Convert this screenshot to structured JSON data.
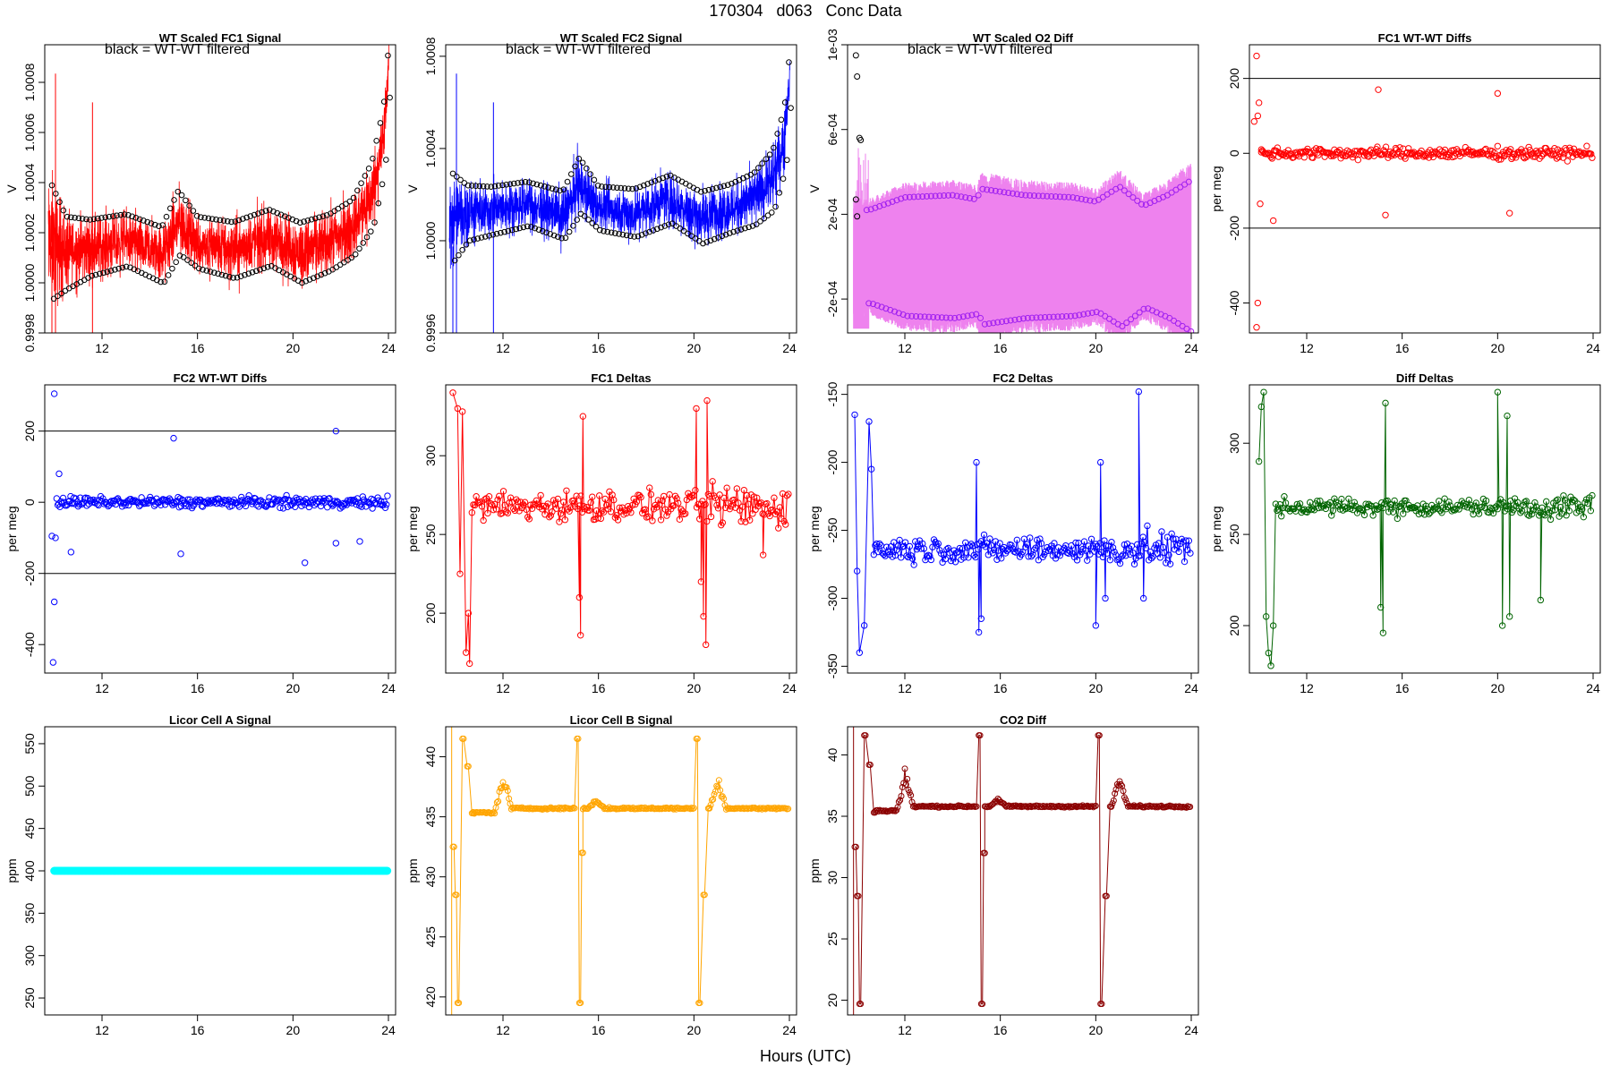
{
  "page": {
    "title": "170304   d063   Conc Data",
    "xlabel": "Hours (UTC)"
  },
  "chart_data": [
    {
      "type": "line",
      "style": "noisy-band",
      "title": "WT Scaled FC1 Signal",
      "subtitle": "black = WT-WT filtered",
      "ylabel": "V",
      "color": "#ff0000",
      "xlim": [
        9.6,
        24.3
      ],
      "ylim": [
        0.9998,
        1.00095
      ],
      "xticks": [
        12,
        16,
        20,
        24
      ],
      "yticks": [
        0.9998,
        1.0,
        1.0002,
        1.0004,
        1.0006,
        1.0008
      ],
      "ytick_labels": [
        "0.9998",
        "1.0000",
        "1.0002",
        "1.0004",
        "1.0006",
        "1.0008"
      ],
      "band": {
        "x": [
          9.8,
          10.5,
          11.5,
          13,
          14.5,
          15.2,
          16,
          17.5,
          19,
          20.3,
          21.5,
          22.5,
          23.3,
          23.8,
          24.0
        ],
        "center": [
          1.00017,
          1.00012,
          1.00014,
          1.00017,
          1.00011,
          1.00024,
          1.00016,
          1.00013,
          1.00018,
          1.00012,
          1.00016,
          1.00022,
          1.00035,
          1.00058,
          1.00085
        ],
        "half_width": [
          0.0003,
          0.00018,
          0.00014,
          0.00013,
          0.00014,
          0.00016,
          0.00013,
          0.00014,
          0.00014,
          0.00015,
          0.00014,
          0.00014,
          0.00016,
          0.00015,
          0.0001
        ]
      }
    },
    {
      "type": "line",
      "style": "noisy-band",
      "title": "WT Scaled FC2 Signal",
      "subtitle": "black = WT-WT filtered",
      "ylabel": "V",
      "color": "#0000ff",
      "xlim": [
        9.6,
        24.3
      ],
      "ylim": [
        0.9996,
        1.00085
      ],
      "xticks": [
        12,
        16,
        20,
        24
      ],
      "yticks": [
        0.9996,
        1.0,
        1.0004,
        1.0008
      ],
      "ytick_labels": [
        "0.9996",
        "1.0000",
        "1.0004",
        "1.0008"
      ],
      "band": {
        "x": [
          9.8,
          10.5,
          11.5,
          13,
          14.5,
          15.2,
          16,
          17.5,
          19,
          20.3,
          21.5,
          22.5,
          23.3,
          23.8,
          24.0
        ],
        "center": [
          1.0001,
          1.00012,
          1.00013,
          1.00016,
          1.00011,
          1.00024,
          1.00014,
          1.00012,
          1.00018,
          1.0001,
          1.00014,
          1.00018,
          1.00026,
          1.00045,
          1.0007
        ],
        "half_width": [
          0.00025,
          0.00015,
          0.00013,
          0.00012,
          0.00013,
          0.00015,
          0.00012,
          0.00013,
          0.00013,
          0.00014,
          0.00013,
          0.00014,
          0.00016,
          0.00016,
          0.00012
        ]
      }
    },
    {
      "type": "line",
      "style": "two-level",
      "title": "WT Scaled O2 Diff",
      "subtitle": "black = WT-WT filtered",
      "ylabel": "V",
      "color": "#ee82ee",
      "marker_color": "#a020f0",
      "xlim": [
        9.6,
        24.3
      ],
      "ylim": [
        -0.00036,
        0.001
      ],
      "xticks": [
        12,
        16,
        20,
        24
      ],
      "yticks": [
        -0.0002,
        0.0002,
        0.0006,
        0.001
      ],
      "ytick_labels": [
        "-2e-04",
        "2e-04",
        "6e-04",
        "1e-03"
      ],
      "levels": {
        "x": [
          10.5,
          12,
          14,
          15,
          15.2,
          17,
          19,
          20,
          21,
          22,
          23,
          24
        ],
        "upper": [
          0.00022,
          0.00028,
          0.00029,
          0.00027,
          0.00032,
          0.00029,
          0.00028,
          0.00026,
          0.00033,
          0.00024,
          0.00029,
          0.00036
        ],
        "lower": [
          -0.00022,
          -0.00028,
          -0.00029,
          -0.00027,
          -0.00032,
          -0.00029,
          -0.00028,
          -0.00026,
          -0.00033,
          -0.00024,
          -0.00029,
          -0.00036
        ]
      }
    },
    {
      "type": "scatter",
      "title": "FC1 WT-WT Diffs",
      "ylabel": "per meg",
      "color": "#ff0000",
      "xlim": [
        9.6,
        24.3
      ],
      "ylim": [
        -480,
        290
      ],
      "xticks": [
        12,
        16,
        20,
        24
      ],
      "yticks": [
        -400,
        -200,
        0,
        200
      ],
      "ytick_labels": [
        "-400",
        "-200",
        "0",
        "200"
      ],
      "hlines": [
        200,
        -200
      ],
      "outliers": [
        [
          9.8,
          85
        ],
        [
          9.9,
          260
        ],
        [
          10.0,
          135
        ],
        [
          9.95,
          100
        ],
        [
          10.1,
          10
        ],
        [
          10.05,
          -135
        ],
        [
          10.6,
          -180
        ],
        [
          9.95,
          -400
        ],
        [
          9.9,
          -465
        ],
        [
          15.0,
          170
        ],
        [
          15.3,
          -165
        ],
        [
          20.0,
          160
        ],
        [
          20.5,
          -160
        ]
      ]
    },
    {
      "type": "scatter",
      "title": "FC2 WT-WT Diffs",
      "ylabel": "per meg",
      "color": "#0000ff",
      "xlim": [
        9.6,
        24.3
      ],
      "ylim": [
        -480,
        330
      ],
      "xticks": [
        12,
        16,
        20,
        24
      ],
      "yticks": [
        -400,
        -200,
        0,
        200
      ],
      "ytick_labels": [
        "-400",
        "-200",
        "0",
        "200"
      ],
      "hlines": [
        200,
        -200
      ],
      "outliers": [
        [
          10.0,
          305
        ],
        [
          10.2,
          80
        ],
        [
          9.9,
          -95
        ],
        [
          10.05,
          -100
        ],
        [
          10.7,
          -140
        ],
        [
          10.0,
          -280
        ],
        [
          9.95,
          -450
        ],
        [
          15.0,
          180
        ],
        [
          15.3,
          -145
        ],
        [
          20.5,
          -170
        ],
        [
          21.8,
          200
        ],
        [
          21.8,
          -115
        ],
        [
          22.8,
          -110
        ]
      ]
    },
    {
      "type": "line",
      "markers": true,
      "title": "FC1 Deltas",
      "ylabel": "per meg",
      "color": "#ff0000",
      "xlim": [
        9.6,
        24.3
      ],
      "ylim": [
        162,
        345
      ],
      "xticks": [
        12,
        16,
        20,
        24
      ],
      "yticks": [
        200,
        250,
        300
      ],
      "ytick_labels": [
        "200",
        "250",
        "300"
      ],
      "baseline": 268,
      "noise": 14,
      "spikes": [
        [
          9.9,
          340
        ],
        [
          10.1,
          330
        ],
        [
          10.3,
          328
        ],
        [
          10.2,
          225
        ],
        [
          10.45,
          175
        ],
        [
          10.55,
          200
        ],
        [
          10.6,
          168
        ],
        [
          15.2,
          210
        ],
        [
          15.25,
          186
        ],
        [
          15.35,
          325
        ],
        [
          20.1,
          330
        ],
        [
          20.3,
          220
        ],
        [
          20.4,
          198
        ],
        [
          20.5,
          180
        ],
        [
          20.55,
          335
        ],
        [
          22.9,
          237
        ]
      ]
    },
    {
      "type": "line",
      "markers": true,
      "title": "FC2 Deltas",
      "ylabel": "per meg",
      "color": "#0000ff",
      "xlim": [
        9.6,
        24.3
      ],
      "ylim": [
        -355,
        -143
      ],
      "xticks": [
        12,
        16,
        20,
        24
      ],
      "yticks": [
        -350,
        -300,
        -250,
        -200,
        -150
      ],
      "ytick_labels": [
        "-350",
        "-300",
        "-250",
        "-200",
        "-150"
      ],
      "baseline": -264,
      "noise": 14,
      "spikes": [
        [
          9.9,
          -165
        ],
        [
          10.0,
          -280
        ],
        [
          10.1,
          -340
        ],
        [
          10.3,
          -320
        ],
        [
          10.5,
          -170
        ],
        [
          10.6,
          -205
        ],
        [
          15.0,
          -200
        ],
        [
          15.1,
          -325
        ],
        [
          15.2,
          -315
        ],
        [
          20.0,
          -320
        ],
        [
          20.2,
          -200
        ],
        [
          20.4,
          -300
        ],
        [
          21.8,
          -148
        ],
        [
          22.0,
          -300
        ]
      ]
    },
    {
      "type": "line",
      "markers": true,
      "title": "Diff Deltas",
      "ylabel": "per meg",
      "color": "#006400",
      "xlim": [
        9.6,
        24.3
      ],
      "ylim": [
        174,
        332
      ],
      "xticks": [
        12,
        16,
        20,
        24
      ],
      "yticks": [
        200,
        250,
        300
      ],
      "ytick_labels": [
        "200",
        "250",
        "300"
      ],
      "baseline": 265,
      "noise": 7,
      "spikes": [
        [
          10.0,
          290
        ],
        [
          10.1,
          320
        ],
        [
          10.2,
          328
        ],
        [
          10.3,
          205
        ],
        [
          10.4,
          185
        ],
        [
          10.5,
          178
        ],
        [
          10.6,
          200
        ],
        [
          15.1,
          210
        ],
        [
          15.2,
          196
        ],
        [
          15.3,
          322
        ],
        [
          20.0,
          328
        ],
        [
          20.2,
          200
        ],
        [
          20.4,
          315
        ],
        [
          20.5,
          205
        ],
        [
          21.8,
          214
        ]
      ]
    },
    {
      "type": "scatter",
      "style": "flat-band",
      "title": "Licor Cell A Signal",
      "ylabel": "ppm",
      "color": "#00ffff",
      "xlim": [
        9.6,
        24.3
      ],
      "ylim": [
        230,
        570
      ],
      "xticks": [
        12,
        16,
        20,
        24
      ],
      "yticks": [
        250,
        300,
        350,
        400,
        450,
        500,
        550
      ],
      "ytick_labels": [
        "250",
        "300",
        "350",
        "400",
        "450",
        "500",
        "550"
      ],
      "level": 400,
      "xrange": [
        10.0,
        24.0
      ]
    },
    {
      "type": "line",
      "markers": true,
      "style": "steps",
      "title": "Licor Cell B Signal",
      "ylabel": "ppm",
      "color": "#ffa500",
      "xlim": [
        9.6,
        24.3
      ],
      "ylim": [
        418.5,
        442.5
      ],
      "xticks": [
        12,
        16,
        20,
        24
      ],
      "yticks": [
        420,
        425,
        430,
        435,
        440
      ],
      "ytick_labels": [
        "420",
        "425",
        "430",
        "435",
        "440"
      ],
      "baseline": 435.7,
      "steps": [
        [
          9.9,
          432.5
        ],
        [
          10.0,
          428.5
        ],
        [
          10.1,
          419.5
        ],
        [
          10.3,
          441.5
        ],
        [
          10.5,
          439.2
        ],
        [
          10.7,
          435.3
        ],
        [
          15.1,
          441.5
        ],
        [
          15.2,
          419.5
        ],
        [
          15.3,
          432
        ],
        [
          20.1,
          441.5
        ],
        [
          20.2,
          419.5
        ],
        [
          20.4,
          428.5
        ],
        [
          20.6,
          435.7
        ]
      ],
      "bumps": [
        [
          12.0,
          439
        ],
        [
          21.0,
          438.5
        ],
        [
          15.9,
          436.5
        ]
      ]
    },
    {
      "type": "line",
      "markers": true,
      "style": "steps",
      "title": "CO2 Diff",
      "ylabel": "ppm",
      "color": "#8b0000",
      "xlim": [
        9.6,
        24.3
      ],
      "ylim": [
        18.8,
        42.3
      ],
      "xticks": [
        12,
        16,
        20,
        24
      ],
      "yticks": [
        20,
        25,
        30,
        35,
        40
      ],
      "ytick_labels": [
        "20",
        "25",
        "30",
        "35",
        "40"
      ],
      "baseline": 35.8,
      "steps": [
        [
          9.9,
          32.5
        ],
        [
          10.0,
          28.5
        ],
        [
          10.1,
          19.7
        ],
        [
          10.3,
          41.6
        ],
        [
          10.5,
          39.2
        ],
        [
          10.7,
          35.3
        ],
        [
          15.1,
          41.6
        ],
        [
          15.2,
          19.7
        ],
        [
          15.3,
          32
        ],
        [
          20.1,
          41.6
        ],
        [
          20.2,
          19.7
        ],
        [
          20.4,
          28.5
        ],
        [
          20.6,
          35.8
        ]
      ],
      "bumps": [
        [
          12.0,
          39
        ],
        [
          21.0,
          38.5
        ],
        [
          15.9,
          36.5
        ]
      ]
    }
  ]
}
